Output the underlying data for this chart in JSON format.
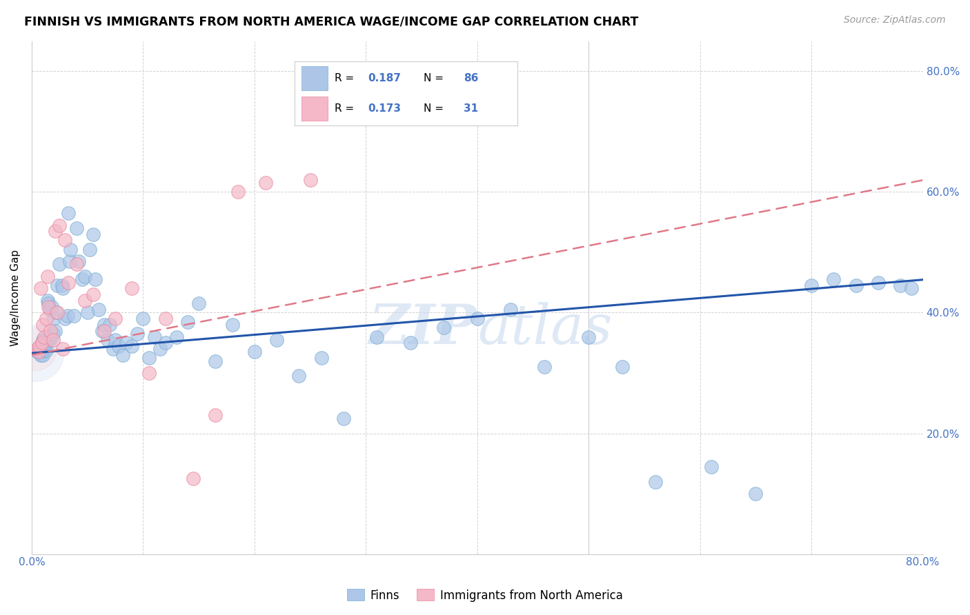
{
  "title": "FINNISH VS IMMIGRANTS FROM NORTH AMERICA WAGE/INCOME GAP CORRELATION CHART",
  "source": "Source: ZipAtlas.com",
  "ylabel": "Wage/Income Gap",
  "xlim": [
    0.0,
    0.8
  ],
  "ylim": [
    0.0,
    0.85
  ],
  "R_finns": 0.187,
  "N_finns": 86,
  "R_immigrants": 0.173,
  "N_immigrants": 31,
  "color_finns": "#adc6e8",
  "color_finns_edge": "#7aadd4",
  "color_immigrants": "#f4b8c8",
  "color_immigrants_edge": "#e888a0",
  "color_line_finns": "#2255aa",
  "color_line_immigrants": "#e07888",
  "color_value": "#4472c4",
  "watermark": "ZIPatlas",
  "legend_entries": [
    "Finns",
    "Immigrants from North America"
  ],
  "finns_x": [
    0.005,
    0.007,
    0.008,
    0.008,
    0.009,
    0.009,
    0.01,
    0.01,
    0.011,
    0.011,
    0.012,
    0.012,
    0.013,
    0.013,
    0.014,
    0.015,
    0.016,
    0.016,
    0.017,
    0.018,
    0.019,
    0.02,
    0.021,
    0.022,
    0.023,
    0.025,
    0.027,
    0.028,
    0.03,
    0.032,
    0.033,
    0.034,
    0.035,
    0.038,
    0.04,
    0.042,
    0.045,
    0.048,
    0.05,
    0.052,
    0.055,
    0.057,
    0.06,
    0.063,
    0.065,
    0.068,
    0.07,
    0.073,
    0.075,
    0.078,
    0.082,
    0.085,
    0.09,
    0.095,
    0.1,
    0.105,
    0.11,
    0.115,
    0.12,
    0.13,
    0.14,
    0.15,
    0.165,
    0.18,
    0.2,
    0.22,
    0.24,
    0.26,
    0.28,
    0.31,
    0.34,
    0.37,
    0.4,
    0.43,
    0.46,
    0.5,
    0.53,
    0.56,
    0.61,
    0.65,
    0.7,
    0.72,
    0.74,
    0.76,
    0.78,
    0.79
  ],
  "finns_y": [
    0.335,
    0.34,
    0.33,
    0.345,
    0.335,
    0.34,
    0.33,
    0.355,
    0.338,
    0.35,
    0.342,
    0.355,
    0.338,
    0.35,
    0.42,
    0.415,
    0.355,
    0.405,
    0.36,
    0.41,
    0.365,
    0.39,
    0.37,
    0.4,
    0.445,
    0.48,
    0.445,
    0.44,
    0.39,
    0.395,
    0.565,
    0.485,
    0.505,
    0.395,
    0.54,
    0.485,
    0.455,
    0.46,
    0.4,
    0.505,
    0.53,
    0.455,
    0.405,
    0.37,
    0.38,
    0.355,
    0.38,
    0.34,
    0.355,
    0.345,
    0.33,
    0.35,
    0.345,
    0.365,
    0.39,
    0.325,
    0.36,
    0.34,
    0.35,
    0.36,
    0.385,
    0.415,
    0.32,
    0.38,
    0.335,
    0.355,
    0.295,
    0.325,
    0.225,
    0.36,
    0.35,
    0.375,
    0.39,
    0.405,
    0.31,
    0.36,
    0.31,
    0.12,
    0.145,
    0.1,
    0.445,
    0.455,
    0.445,
    0.45,
    0.445,
    0.44
  ],
  "immigrants_x": [
    0.005,
    0.006,
    0.007,
    0.008,
    0.009,
    0.01,
    0.011,
    0.013,
    0.014,
    0.015,
    0.017,
    0.019,
    0.021,
    0.023,
    0.025,
    0.028,
    0.03,
    0.033,
    0.04,
    0.048,
    0.055,
    0.065,
    0.075,
    0.09,
    0.105,
    0.12,
    0.145,
    0.165,
    0.185,
    0.21,
    0.25
  ],
  "immigrants_y": [
    0.34,
    0.335,
    0.345,
    0.44,
    0.35,
    0.38,
    0.36,
    0.39,
    0.46,
    0.41,
    0.37,
    0.355,
    0.535,
    0.4,
    0.545,
    0.34,
    0.52,
    0.45,
    0.48,
    0.42,
    0.43,
    0.37,
    0.39,
    0.44,
    0.3,
    0.39,
    0.125,
    0.23,
    0.6,
    0.615,
    0.62
  ]
}
